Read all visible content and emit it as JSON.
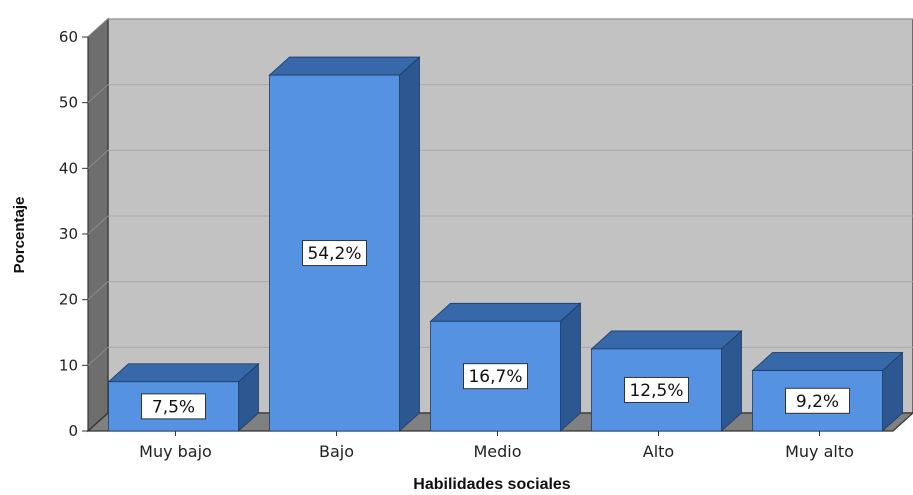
{
  "chart_data": {
    "type": "bar",
    "xlabel": "Habilidades sociales",
    "ylabel": "Porcentaje",
    "ylim": [
      0,
      60
    ],
    "yticks": [
      0,
      10,
      20,
      30,
      40,
      50,
      60
    ],
    "categories": [
      "Muy bajo",
      "Bajo",
      "Medio",
      "Alto",
      "Muy alto"
    ],
    "values": [
      7.5,
      54.2,
      16.7,
      12.5,
      9.2
    ],
    "data_labels": [
      "7,5%",
      "54,2%",
      "16,7%",
      "12,5%",
      "9,2%"
    ],
    "grid": true,
    "style": "3d",
    "colors": {
      "bar_front": "#5593E2",
      "bar_top": "#3668AA",
      "bar_side": "#2D5790",
      "plot_back": "#C2C2C2",
      "plot_floor": "#808080",
      "plot_wall": "#6E6E6E",
      "gridline": "#A9A9A9"
    }
  }
}
